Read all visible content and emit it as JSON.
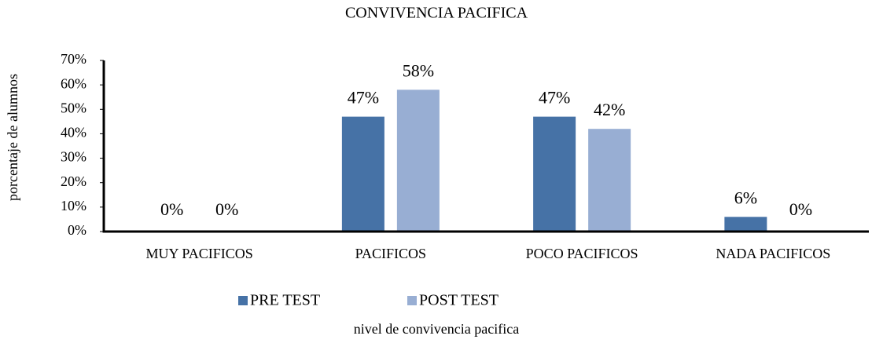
{
  "chart_data": {
    "type": "bar",
    "title": "CONVIVENCIA PACIFICA",
    "x_label": "nivel de convivencia pacifica",
    "y_label": "porcentaje de alumnos",
    "categories": [
      "MUY PACIFICOS",
      "PACIFICOS",
      "POCO PACIFICOS",
      "NADA PACIFICOS"
    ],
    "series": [
      {
        "name": "PRE TEST",
        "color": "#4672a6",
        "values": [
          0,
          47,
          47,
          6
        ],
        "value_labels": [
          "0%",
          "47%",
          "47%",
          "6%"
        ]
      },
      {
        "name": "POST TEST",
        "color": "#98aed3",
        "values": [
          0,
          58,
          42,
          0
        ],
        "value_labels": [
          "0%",
          "58%",
          "42%",
          "0%"
        ]
      }
    ],
    "ylim": [
      0,
      70
    ],
    "yticks": [
      {
        "value": 0,
        "label": "0%"
      },
      {
        "value": 10,
        "label": "10%"
      },
      {
        "value": 20,
        "label": "20%"
      },
      {
        "value": 30,
        "label": "30%"
      },
      {
        "value": 40,
        "label": "40%"
      },
      {
        "value": 50,
        "label": "50%"
      },
      {
        "value": 60,
        "label": "60%"
      },
      {
        "value": 70,
        "label": "70%"
      }
    ],
    "legend": "bottom"
  }
}
